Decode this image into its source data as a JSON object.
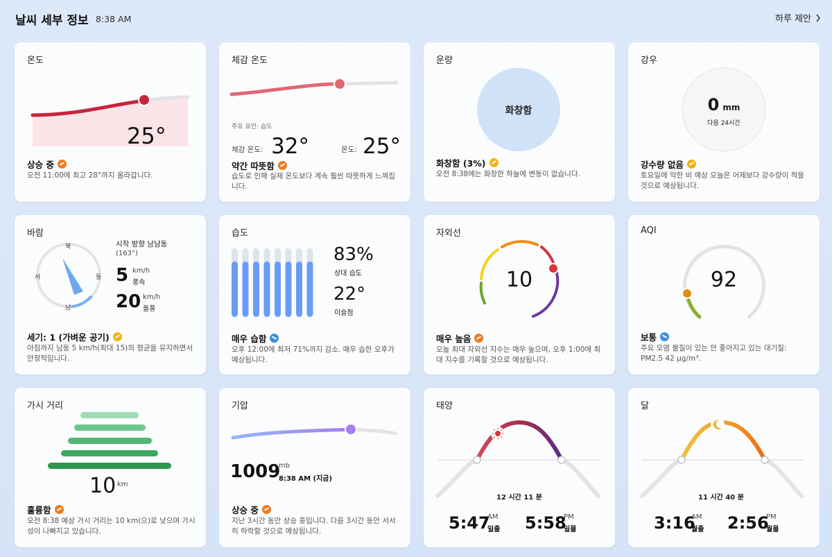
{
  "header": {
    "title": "날씨 세부 정보",
    "time": "8:38 AM",
    "link": "하루 제안"
  },
  "temperature": {
    "title": "온도",
    "value": "25°",
    "status": "상승 중",
    "desc": "오전 11:00에 최고 28°까지 올라갑니다."
  },
  "feels": {
    "title": "체감 온도",
    "factor": "주요 요인: 습도",
    "feels_label": "체감 온도:",
    "feels_value": "32°",
    "temp_label": "온도:",
    "temp_value": "25°",
    "status": "약간 따뜻함",
    "desc": "습도로 인해 실제 온도보다 계속 훨씬 따뜻하게 느껴집니다."
  },
  "cloud": {
    "title": "운량",
    "circle": "화창함",
    "status": "화창함 (3%)",
    "desc": "오전 8:38에는 화창한 하늘에 변동이 없습니다."
  },
  "rain": {
    "title": "강우",
    "value": "0",
    "unit": "mm",
    "period": "다음 24시간",
    "status": "강수량 없음",
    "desc": "토요일에 악한 비 예상 오늘은 어제보다 강수량이 적을 것으로 예상됩니다."
  },
  "wind": {
    "title": "바람",
    "dir_label": "시작 방향 남남동",
    "dir_deg": "(163°)",
    "speed": "5",
    "speed_unit": "km/h",
    "speed_label": "풍속",
    "gust": "20",
    "gust_unit": "km/h",
    "gust_label": "돌풍",
    "n": "북",
    "e": "동",
    "s": "남",
    "w": "서",
    "status": "세기: 1 (가벼운 공기)",
    "desc": "아침까지 남동 5 km/h(최대 15)의 평균을 유지하면서 안정적입니다."
  },
  "humidity": {
    "title": "습도",
    "value": "83%",
    "value_label": "상대 습도",
    "dew": "22°",
    "dew_label": "이슬점",
    "status": "매우 습함",
    "desc": "오후 12:00에 최저 71%까지 감소. 매우 습한 오후가 예상됩니다."
  },
  "uv": {
    "title": "자외선",
    "value": "10",
    "status": "매우 높음",
    "desc": "오늘 최대 자외선 지수는 매우 높으며, 오후 1:00에 최대 지수를 기록할 것으로 예상됩니다."
  },
  "aqi": {
    "title": "AQI",
    "value": "92",
    "status": "보통",
    "desc": "주요 오염 물질이 있는 안 좋아지고 있는 대기질: PM2.5 42 µg/m³."
  },
  "visibility": {
    "title": "가시 거리",
    "value": "10",
    "unit": "km",
    "status": "훌륭함",
    "desc": "오전 8:38 예상 가시 거리는 10 km(으)로 낮으며 가시성이 나빠지고 있습니다."
  },
  "pressure": {
    "title": "기압",
    "value": "1009",
    "unit": "mb",
    "time": "8:38 AM (지금)",
    "status": "상승 중",
    "desc": "지난 3시간 동안 상승 중입니다. 다음 3시간 동안 서서히 하락할 것으로 예상됩니다."
  },
  "sun": {
    "title": "태양",
    "duration": "12 시간 11 분",
    "rise": "5:47",
    "rise_ampm": "AM",
    "rise_label": "일출",
    "set": "5:58",
    "set_ampm": "PM",
    "set_label": "일몰"
  },
  "moon": {
    "title": "달",
    "duration": "11 시간 40 분",
    "rise": "3:16",
    "rise_ampm": "AM",
    "rise_label": "월출",
    "set": "2:56",
    "set_ampm": "PM",
    "set_label": "월몰"
  }
}
